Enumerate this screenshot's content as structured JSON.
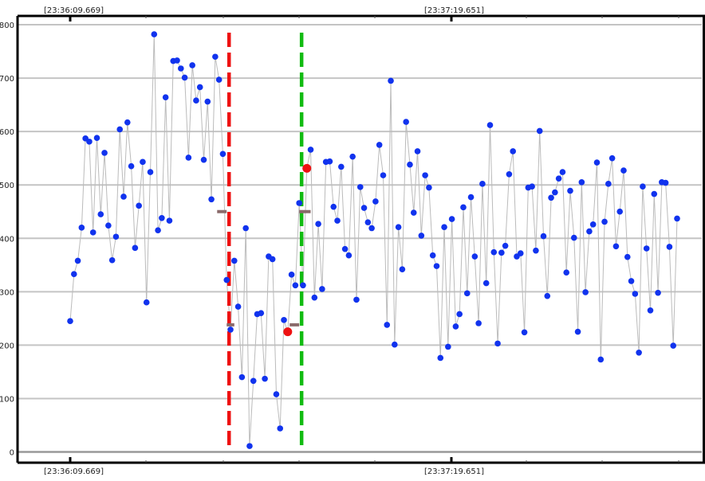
{
  "chart_data": {
    "type": "line",
    "title": "",
    "xlabel": "",
    "ylabel": "",
    "ylim": [
      0,
      800
    ],
    "yticks": [
      0,
      100,
      200,
      300,
      400,
      500,
      600,
      700,
      800
    ],
    "grid": true,
    "time_labels": {
      "top_left": "[23:36:09.669]",
      "top_mid": "[23:37:19.651]",
      "bottom_left": "[23:36:09.669]",
      "bottom_mid": "[23:37:19.651]"
    },
    "series": [
      {
        "values": [
          245,
          333,
          358,
          420,
          587,
          581,
          411,
          588,
          445,
          560,
          424,
          359,
          403,
          604,
          478,
          617,
          535,
          382,
          461,
          543,
          280,
          524,
          782,
          415,
          438,
          664,
          433,
          732,
          733,
          718,
          701,
          551,
          724,
          658,
          683,
          547,
          656,
          473,
          740,
          697,
          558,
          322,
          229,
          358,
          272,
          140,
          419,
          11,
          133,
          258,
          260,
          137,
          366,
          361,
          108,
          44,
          247,
          225,
          332,
          312,
          466,
          312,
          531,
          566,
          289,
          427,
          305,
          543,
          544,
          459,
          433,
          534,
          380,
          368,
          553,
          285,
          496,
          457,
          430,
          419,
          469,
          575,
          518,
          238,
          695,
          201,
          421,
          342,
          618,
          538,
          448,
          563,
          405,
          518,
          495,
          368,
          348,
          176,
          421,
          197,
          436,
          235,
          258,
          458,
          297,
          477,
          366,
          241,
          502,
          316,
          612,
          374,
          203,
          373,
          386,
          520,
          563,
          366,
          372,
          224,
          495,
          497,
          377,
          601,
          404,
          292,
          476,
          486,
          512,
          524,
          336,
          489,
          401,
          225,
          505,
          299,
          413,
          426,
          542,
          173,
          431,
          502,
          550,
          385,
          450,
          527,
          365,
          320,
          296,
          186,
          497,
          381,
          265,
          483,
          298,
          505,
          504,
          384,
          199,
          437
        ]
      }
    ],
    "highlighted_points": [
      {
        "index": 57,
        "value": 225
      },
      {
        "index": 62,
        "value": 531
      }
    ],
    "vertical_markers": [
      {
        "color": "#ee1111",
        "style": "dashed",
        "index": 41
      },
      {
        "color": "#11bb11",
        "style": "dashed",
        "index": 60
      }
    ],
    "step_marks": [
      {
        "from": 38.5,
        "to": 41,
        "value": 450
      },
      {
        "from": 41,
        "to": 43,
        "value": 238
      },
      {
        "from": 57.5,
        "to": 60,
        "value": 238
      },
      {
        "from": 60,
        "to": 63,
        "value": 450
      }
    ],
    "colors": {
      "point": "#1133ee",
      "highlight": "#ee1111",
      "line": "#bbbbbb",
      "grid": "#c4c4c4",
      "step": "#8a6a6a"
    }
  }
}
